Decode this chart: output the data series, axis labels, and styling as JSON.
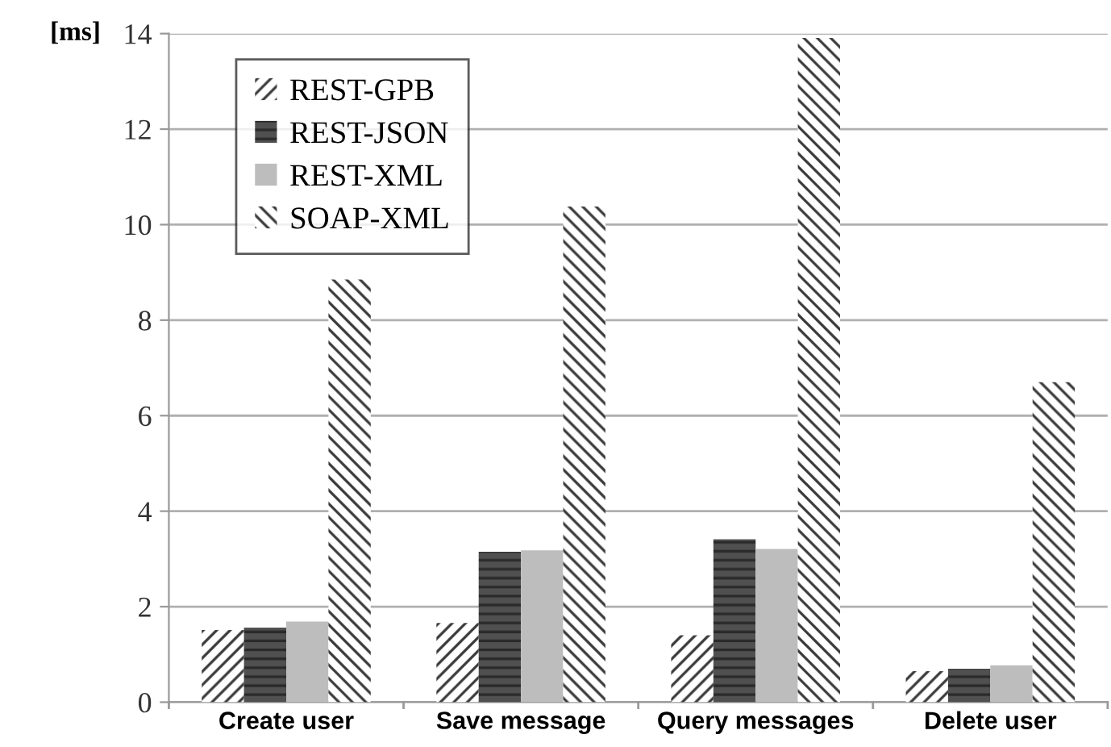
{
  "chart_data": {
    "type": "bar",
    "ylabel": "[ms]",
    "categories": [
      "Create user",
      "Save message",
      "Query messages",
      "Delete user"
    ],
    "series": [
      {
        "name": "REST-GPB",
        "color": "#3a3a3a",
        "values": [
          1.51,
          1.66,
          1.4,
          0.65
        ]
      },
      {
        "name": "REST-JSON",
        "color": "#505050",
        "values": [
          1.56,
          3.15,
          3.41,
          0.7
        ]
      },
      {
        "name": "REST-XML",
        "color": "#bdbdbd",
        "values": [
          1.69,
          3.18,
          3.21,
          0.77
        ]
      },
      {
        "name": "SOAP-XML",
        "color": "#3a3a3a",
        "values": [
          8.85,
          10.38,
          13.91,
          6.7
        ]
      }
    ],
    "ylim": [
      0,
      14
    ],
    "yticks": [
      0,
      2,
      4,
      6,
      8,
      10,
      12,
      14
    ],
    "grid": "y",
    "legend": "top left"
  }
}
